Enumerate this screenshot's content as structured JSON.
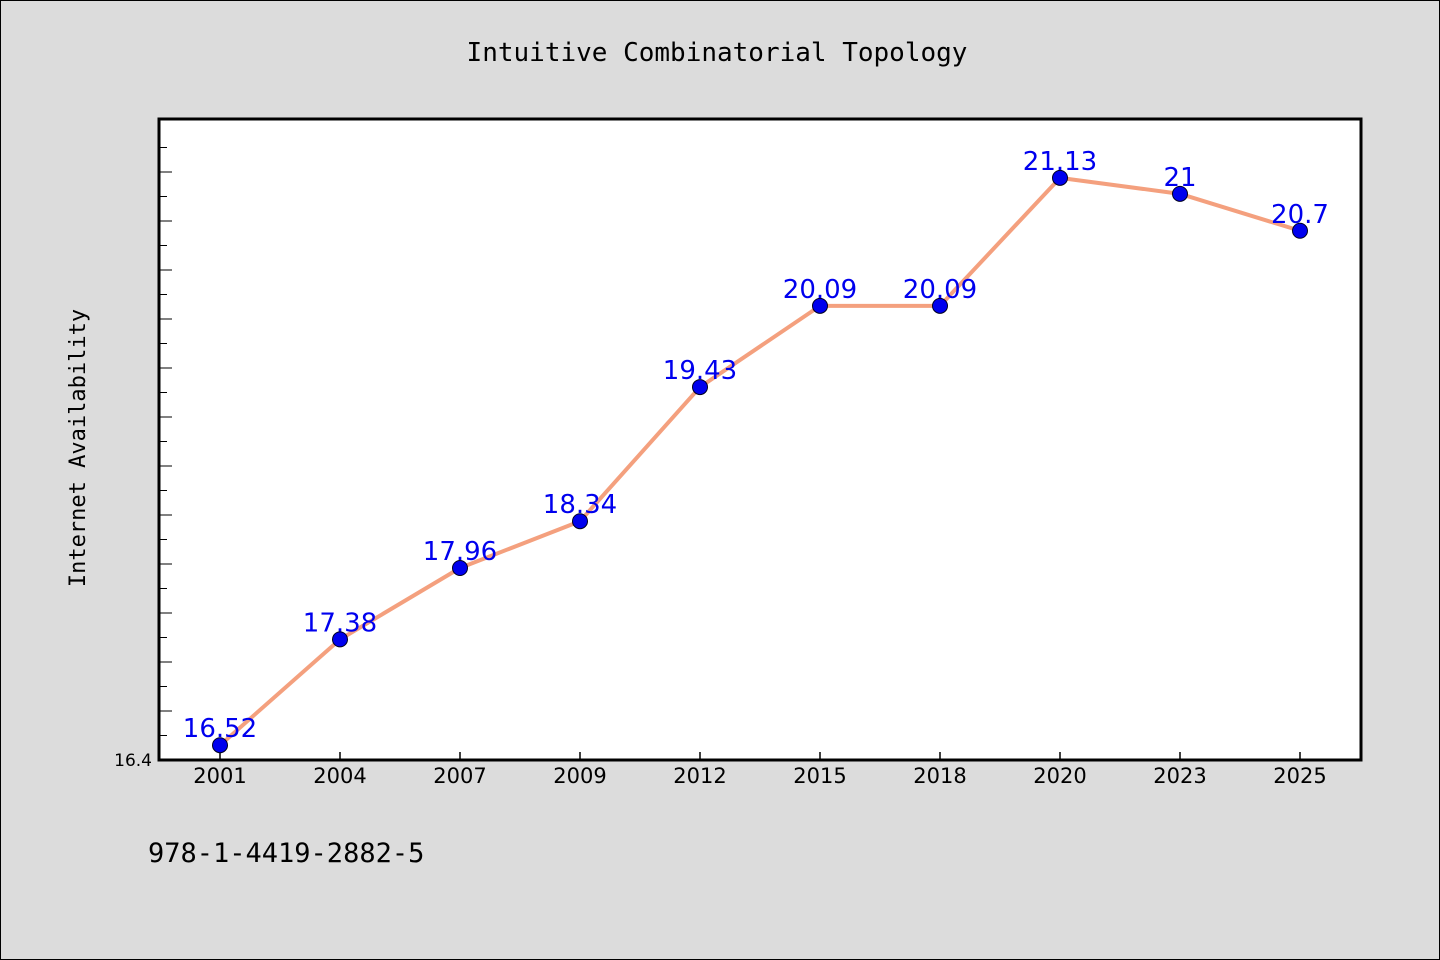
{
  "chart_data": {
    "type": "line",
    "title": "Intuitive Combinatorial Topology",
    "xlabel": "",
    "ylabel": "Internet Availability",
    "categories": [
      "2001",
      "2004",
      "2007",
      "2009",
      "2012",
      "2015",
      "2018",
      "2020",
      "2023",
      "2025"
    ],
    "series": [
      {
        "values": [
          16.52,
          17.38,
          17.96,
          18.34,
          19.43,
          20.09,
          20.09,
          21.13,
          21.0,
          20.7
        ],
        "data_labels": [
          "16.52",
          "17.38",
          "17.96",
          "18.34",
          "19.43",
          "20.09",
          "20.09",
          "21.13",
          "21",
          "20.7"
        ]
      }
    ],
    "ylim": [
      16.4,
      21.6
    ],
    "y_tick_labels": [
      "16.4"
    ],
    "grid": false,
    "colors": {
      "line": "#f4a07e",
      "marker": "#0000ee",
      "label": "#0000ee",
      "plot_background": "#ffffff",
      "figure_background": "#dcdcdc"
    }
  },
  "footer": {
    "isbn": "978-1-4419-2882-5"
  }
}
